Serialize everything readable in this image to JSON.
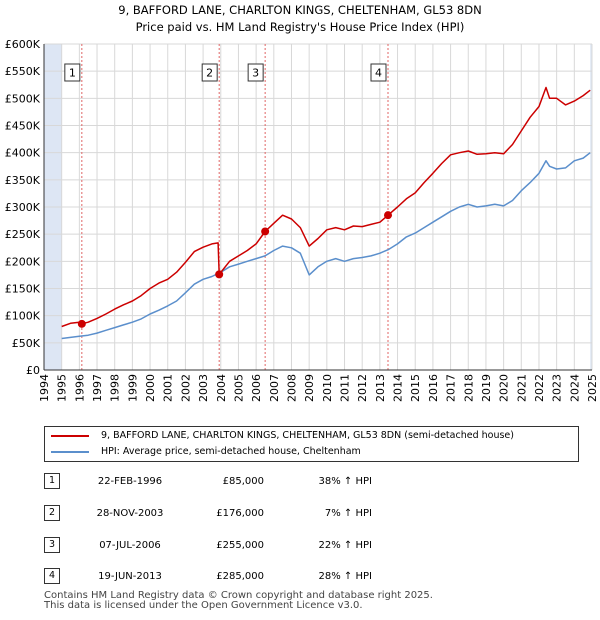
{
  "title": {
    "line1": "9, BAFFORD LANE, CHARLTON KINGS, CHELTENHAM, GL53 8DN",
    "line2": "Price paid vs. HM Land Registry's House Price Index (HPI)"
  },
  "legend": {
    "property_label": "9, BAFFORD LANE, CHARLTON KINGS, CHELTENHAM, GL53 8DN (semi-detached house)",
    "hpi_label": "HPI: Average price, semi-detached house, Cheltenham"
  },
  "transactions": [
    {
      "num": "1",
      "date": "22-FEB-1996",
      "price": "£85,000",
      "hpi": "38% ↑ HPI"
    },
    {
      "num": "2",
      "date": "28-NOV-2003",
      "price": "£176,000",
      "hpi": "7% ↑ HPI"
    },
    {
      "num": "3",
      "date": "07-JUL-2006",
      "price": "£255,000",
      "hpi": "22% ↑ HPI"
    },
    {
      "num": "4",
      "date": "19-JUN-2013",
      "price": "£285,000",
      "hpi": "28% ↑ HPI"
    }
  ],
  "footer": {
    "line1": "Contains HM Land Registry data © Crown copyright and database right 2025.",
    "line2": "This data is licensed under the Open Government Licence v3.0."
  },
  "colors": {
    "property": "#cc0000",
    "hpi": "#5b8fcc",
    "shade": "#dde6f4",
    "grid": "#d8d8d8",
    "marker_line": "#e06666"
  },
  "chart_data": {
    "type": "line",
    "title": "Price paid vs. HM Land Registry's House Price Index (HPI)",
    "xlabel": "",
    "ylabel": "",
    "xlim": [
      1994,
      2025
    ],
    "ylim": [
      0,
      600000
    ],
    "x_ticks": [
      1994,
      1995,
      1996,
      1997,
      1998,
      1999,
      2000,
      2001,
      2002,
      2003,
      2004,
      2005,
      2006,
      2007,
      2008,
      2009,
      2010,
      2011,
      2012,
      2013,
      2014,
      2015,
      2016,
      2017,
      2018,
      2019,
      2020,
      2021,
      2022,
      2023,
      2024,
      2025
    ],
    "y_ticks": [
      0,
      50000,
      100000,
      150000,
      200000,
      250000,
      300000,
      350000,
      400000,
      450000,
      500000,
      550000,
      600000
    ],
    "y_tick_labels": [
      "£0",
      "£50K",
      "£100K",
      "£150K",
      "£200K",
      "£250K",
      "£300K",
      "£350K",
      "£400K",
      "£450K",
      "£500K",
      "£550K",
      "£600K"
    ],
    "shaded_ranges": [
      [
        1994,
        1995.0
      ],
      [
        2024.9,
        2025
      ]
    ],
    "series": [
      {
        "name": "9, BAFFORD LANE, CHARLTON KINGS, CHELTENHAM, GL53 8DN (semi-detached house)",
        "x": [
          1995.0,
          1995.5,
          1996.0,
          1996.14,
          1996.5,
          1997.0,
          1997.5,
          1998.0,
          1998.5,
          1999.0,
          1999.5,
          2000.0,
          2000.5,
          2001.0,
          2001.5,
          2002.0,
          2002.5,
          2003.0,
          2003.5,
          2003.85,
          2003.91,
          2004.5,
          2005.0,
          2005.5,
          2006.0,
          2006.51,
          2007.0,
          2007.5,
          2008.0,
          2008.5,
          2009.0,
          2009.5,
          2010.0,
          2010.5,
          2011.0,
          2011.5,
          2012.0,
          2012.5,
          2013.0,
          2013.46,
          2014.0,
          2014.5,
          2015.0,
          2015.5,
          2016.0,
          2016.5,
          2017.0,
          2017.5,
          2018.0,
          2018.5,
          2019.0,
          2019.5,
          2020.0,
          2020.5,
          2021.0,
          2021.5,
          2022.0,
          2022.4,
          2022.6,
          2023.0,
          2023.5,
          2024.0,
          2024.5,
          2024.9
        ],
        "values": [
          80000,
          86000,
          88000,
          85000,
          88000,
          95000,
          103000,
          112000,
          120000,
          127000,
          137000,
          150000,
          160000,
          167000,
          180000,
          198000,
          218000,
          226000,
          232000,
          234000,
          176000,
          200000,
          210000,
          220000,
          232000,
          255000,
          270000,
          285000,
          278000,
          262000,
          228000,
          242000,
          258000,
          262000,
          258000,
          265000,
          264000,
          268000,
          272000,
          285000,
          300000,
          315000,
          326000,
          345000,
          362000,
          380000,
          396000,
          400000,
          403000,
          397000,
          398000,
          400000,
          398000,
          415000,
          440000,
          465000,
          485000,
          520000,
          500000,
          500000,
          488000,
          495000,
          505000,
          515000
        ]
      },
      {
        "name": "HPI: Average price, semi-detached house, Cheltenham",
        "x": [
          1995.0,
          1995.5,
          1996.0,
          1996.5,
          1997.0,
          1997.5,
          1998.0,
          1998.5,
          1999.0,
          1999.5,
          2000.0,
          2000.5,
          2001.0,
          2001.5,
          2002.0,
          2002.5,
          2003.0,
          2003.5,
          2004.0,
          2004.5,
          2005.0,
          2005.5,
          2006.0,
          2006.5,
          2007.0,
          2007.5,
          2008.0,
          2008.5,
          2009.0,
          2009.5,
          2010.0,
          2010.5,
          2011.0,
          2011.5,
          2012.0,
          2012.5,
          2013.0,
          2013.5,
          2014.0,
          2014.5,
          2015.0,
          2015.5,
          2016.0,
          2016.5,
          2017.0,
          2017.5,
          2018.0,
          2018.5,
          2019.0,
          2019.5,
          2020.0,
          2020.5,
          2021.0,
          2021.5,
          2022.0,
          2022.4,
          2022.6,
          2023.0,
          2023.5,
          2024.0,
          2024.5,
          2024.9
        ],
        "values": [
          58000,
          60000,
          62000,
          64000,
          68000,
          73000,
          78000,
          83000,
          88000,
          94000,
          103000,
          110000,
          118000,
          127000,
          142000,
          158000,
          167000,
          172000,
          180000,
          190000,
          195000,
          200000,
          205000,
          210000,
          220000,
          228000,
          225000,
          215000,
          175000,
          190000,
          200000,
          205000,
          200000,
          205000,
          207000,
          210000,
          215000,
          222000,
          232000,
          245000,
          252000,
          262000,
          272000,
          282000,
          292000,
          300000,
          305000,
          300000,
          302000,
          305000,
          302000,
          312000,
          330000,
          345000,
          362000,
          385000,
          375000,
          370000,
          372000,
          385000,
          390000,
          400000
        ]
      }
    ],
    "markers": [
      {
        "label": "1",
        "x": 1996.14,
        "y": 85000
      },
      {
        "label": "2",
        "x": 2003.91,
        "y": 176000
      },
      {
        "label": "3",
        "x": 2006.51,
        "y": 255000
      },
      {
        "label": "4",
        "x": 2013.46,
        "y": 285000
      }
    ]
  }
}
